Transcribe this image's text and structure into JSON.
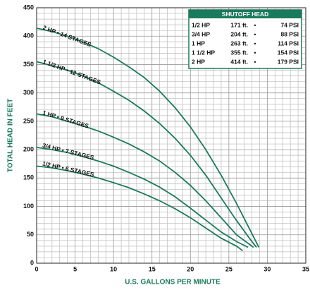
{
  "chart_data": {
    "type": "line",
    "xlabel": "U.S. GALLONS PER MINUTE",
    "ylabel": "TOTAL HEAD IN FEET",
    "xlim": [
      0,
      35
    ],
    "xticks": [
      0,
      5,
      10,
      15,
      20,
      25,
      30,
      35
    ],
    "ylim": [
      0,
      450
    ],
    "yticks": [
      0,
      50,
      100,
      150,
      200,
      250,
      300,
      350,
      400,
      450
    ],
    "grid": true,
    "color": "#1a7a5c",
    "series": [
      {
        "name": "2 HP • 14 STAGES",
        "x": [
          0,
          2,
          4,
          6,
          8,
          10,
          12,
          14,
          16,
          18,
          20,
          22,
          24,
          26,
          28,
          28.9
        ],
        "values": [
          414,
          408,
          400,
          390,
          378,
          363,
          346,
          327,
          303,
          274,
          240,
          200,
          155,
          105,
          52,
          28
        ]
      },
      {
        "name": "1 1/2 HP • 12 STAGES",
        "x": [
          0,
          2,
          4,
          6,
          8,
          10,
          12,
          14,
          16,
          18,
          20,
          22,
          24,
          26,
          28,
          28.6
        ],
        "values": [
          355,
          348,
          340,
          330,
          318,
          303,
          287,
          268,
          246,
          220,
          190,
          155,
          115,
          75,
          38,
          28
        ]
      },
      {
        "name": "1 HP • 9 STAGES",
        "x": [
          0,
          2,
          4,
          6,
          8,
          10,
          12,
          14,
          16,
          18,
          20,
          22,
          24,
          26,
          28.2
        ],
        "values": [
          263,
          258,
          250,
          242,
          233,
          222,
          210,
          196,
          180,
          160,
          137,
          110,
          80,
          50,
          28
        ]
      },
      {
        "name": "3/4 HP • 7 STAGES",
        "x": [
          0,
          2,
          4,
          6,
          8,
          10,
          12,
          14,
          16,
          18,
          20,
          22,
          24,
          26,
          27.5
        ],
        "values": [
          204,
          200,
          195,
          188,
          180,
          171,
          160,
          148,
          134,
          117,
          97,
          76,
          55,
          38,
          28
        ]
      },
      {
        "name": "1/2 HP • 6 STAGES",
        "x": [
          0,
          2,
          4,
          6,
          8,
          10,
          12,
          14,
          16,
          18,
          20,
          22,
          24,
          26,
          26.8
        ],
        "values": [
          171,
          168,
          163,
          157,
          150,
          142,
          133,
          122,
          110,
          96,
          80,
          62,
          44,
          30,
          22
        ]
      }
    ]
  },
  "table": {
    "title": "SHUTOFF HEAD",
    "rows": [
      [
        "1/2 HP",
        "171 ft.",
        "•",
        "74 PSI"
      ],
      [
        "3/4 HP",
        "204 ft.",
        "•",
        "88 PSI"
      ],
      [
        "1 HP",
        "263 ft.",
        "•",
        "114 PSI"
      ],
      [
        "1 1/2 HP",
        "355 ft.",
        "•",
        "154 PSI"
      ],
      [
        "2 HP",
        "414 ft.",
        "•",
        "179 PSI"
      ]
    ]
  }
}
